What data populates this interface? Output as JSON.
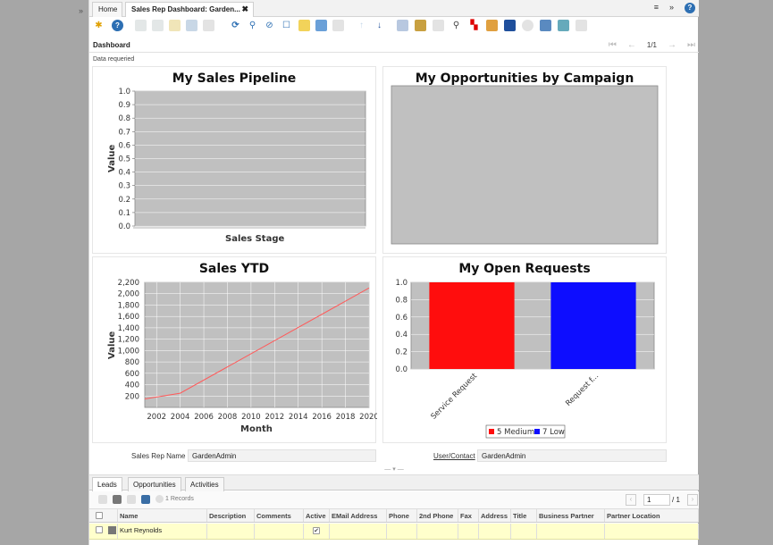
{
  "tabs": {
    "home": "Home",
    "active": "Sales Rep Dashboard: Garden..."
  },
  "header": {
    "title": "Dashboard",
    "record_count": "1/1"
  },
  "status": "Data requeried",
  "charts": {
    "pipeline": {
      "title": "My Sales Pipeline",
      "xlabel": "Sales Stage",
      "ylabel": "Value"
    },
    "campaign": {
      "title": "My Opportunities by Campaign"
    },
    "ytd": {
      "title": "Sales YTD",
      "xlabel": "Month",
      "ylabel": "Value"
    },
    "requests": {
      "title": "My Open Requests"
    }
  },
  "chart_data": [
    {
      "type": "bar",
      "title": "My Sales Pipeline",
      "xlabel": "Sales Stage",
      "ylabel": "Value",
      "categories": [],
      "values": [],
      "ylim": [
        0,
        1
      ],
      "yticks": [
        "0.0",
        "0.1",
        "0.2",
        "0.3",
        "0.4",
        "0.5",
        "0.6",
        "0.7",
        "0.8",
        "0.9",
        "1.0"
      ]
    },
    {
      "type": "bar",
      "title": "My Opportunities by Campaign",
      "categories": [],
      "values": []
    },
    {
      "type": "line",
      "title": "Sales YTD",
      "xlabel": "Month",
      "ylabel": "Value",
      "x": [
        2001,
        2004,
        2020
      ],
      "y": [
        150,
        250,
        2100
      ],
      "xlim": [
        2001,
        2020
      ],
      "ylim": [
        0,
        2200
      ],
      "xticks": [
        "2002",
        "2004",
        "2006",
        "2008",
        "2010",
        "2012",
        "2014",
        "2016",
        "2018",
        "2020"
      ],
      "yticks": [
        "200",
        "400",
        "600",
        "800",
        "1,000",
        "1,200",
        "1,400",
        "1,600",
        "1,800",
        "2,000",
        "2,200"
      ]
    },
    {
      "type": "bar",
      "title": "My Open Requests",
      "categories": [
        "Service Request",
        "Request f..."
      ],
      "values": [
        1.0,
        1.0
      ],
      "colors": [
        "#ff0d0d",
        "#0d0dff"
      ],
      "ylim": [
        0,
        1
      ],
      "yticks": [
        "0.0",
        "0.2",
        "0.4",
        "0.6",
        "0.8",
        "1.0"
      ],
      "legend": [
        "5 Medium",
        "7 Low"
      ]
    }
  ],
  "form": {
    "sales_rep_label": "Sales Rep Name",
    "sales_rep_value": "GardenAdmin",
    "user_label": "User/Contact",
    "user_value": "GardenAdmin"
  },
  "bottom_tabs": [
    "Leads",
    "Opportunities",
    "Activities"
  ],
  "grid": {
    "records": "1 Records",
    "page": "1",
    "page_of": "/ 1",
    "columns": [
      "Name",
      "Description",
      "Comments",
      "Active",
      "EMail Address",
      "Phone",
      "2nd Phone",
      "Fax",
      "Address",
      "Title",
      "Business Partner",
      "Partner Location"
    ],
    "rows": [
      {
        "name": "Kurt Reynolds",
        "active": "✔"
      }
    ]
  },
  "colors": {
    "plot_bg": "#c0c0c0",
    "line": "#ff5a5a",
    "accent": "#2d6fb3"
  }
}
